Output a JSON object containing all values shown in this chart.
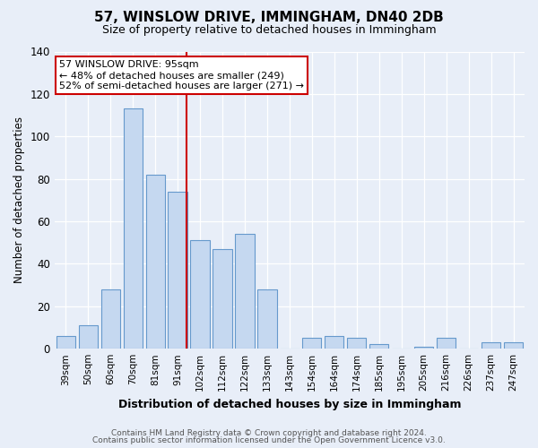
{
  "title": "57, WINSLOW DRIVE, IMMINGHAM, DN40 2DB",
  "subtitle": "Size of property relative to detached houses in Immingham",
  "xlabel": "Distribution of detached houses by size in Immingham",
  "ylabel": "Number of detached properties",
  "bar_labels": [
    "39sqm",
    "50sqm",
    "60sqm",
    "70sqm",
    "81sqm",
    "91sqm",
    "102sqm",
    "112sqm",
    "122sqm",
    "133sqm",
    "143sqm",
    "154sqm",
    "164sqm",
    "174sqm",
    "185sqm",
    "195sqm",
    "205sqm",
    "216sqm",
    "226sqm",
    "237sqm",
    "247sqm"
  ],
  "bar_values": [
    6,
    11,
    28,
    113,
    82,
    74,
    51,
    47,
    54,
    28,
    0,
    5,
    6,
    5,
    2,
    0,
    1,
    5,
    0,
    3,
    3
  ],
  "bar_color": "#c5d8f0",
  "bar_edge_color": "#6699cc",
  "vline_x": 5,
  "vline_color": "#cc0000",
  "ylim": [
    0,
    140
  ],
  "yticks": [
    0,
    20,
    40,
    60,
    80,
    100,
    120,
    140
  ],
  "annotation_text": "57 WINSLOW DRIVE: 95sqm\n← 48% of detached houses are smaller (249)\n52% of semi-detached houses are larger (271) →",
  "annotation_box_color": "#cc0000",
  "footer_line1": "Contains HM Land Registry data © Crown copyright and database right 2024.",
  "footer_line2": "Contains public sector information licensed under the Open Government Licence v3.0.",
  "bg_color": "#e8eef8"
}
